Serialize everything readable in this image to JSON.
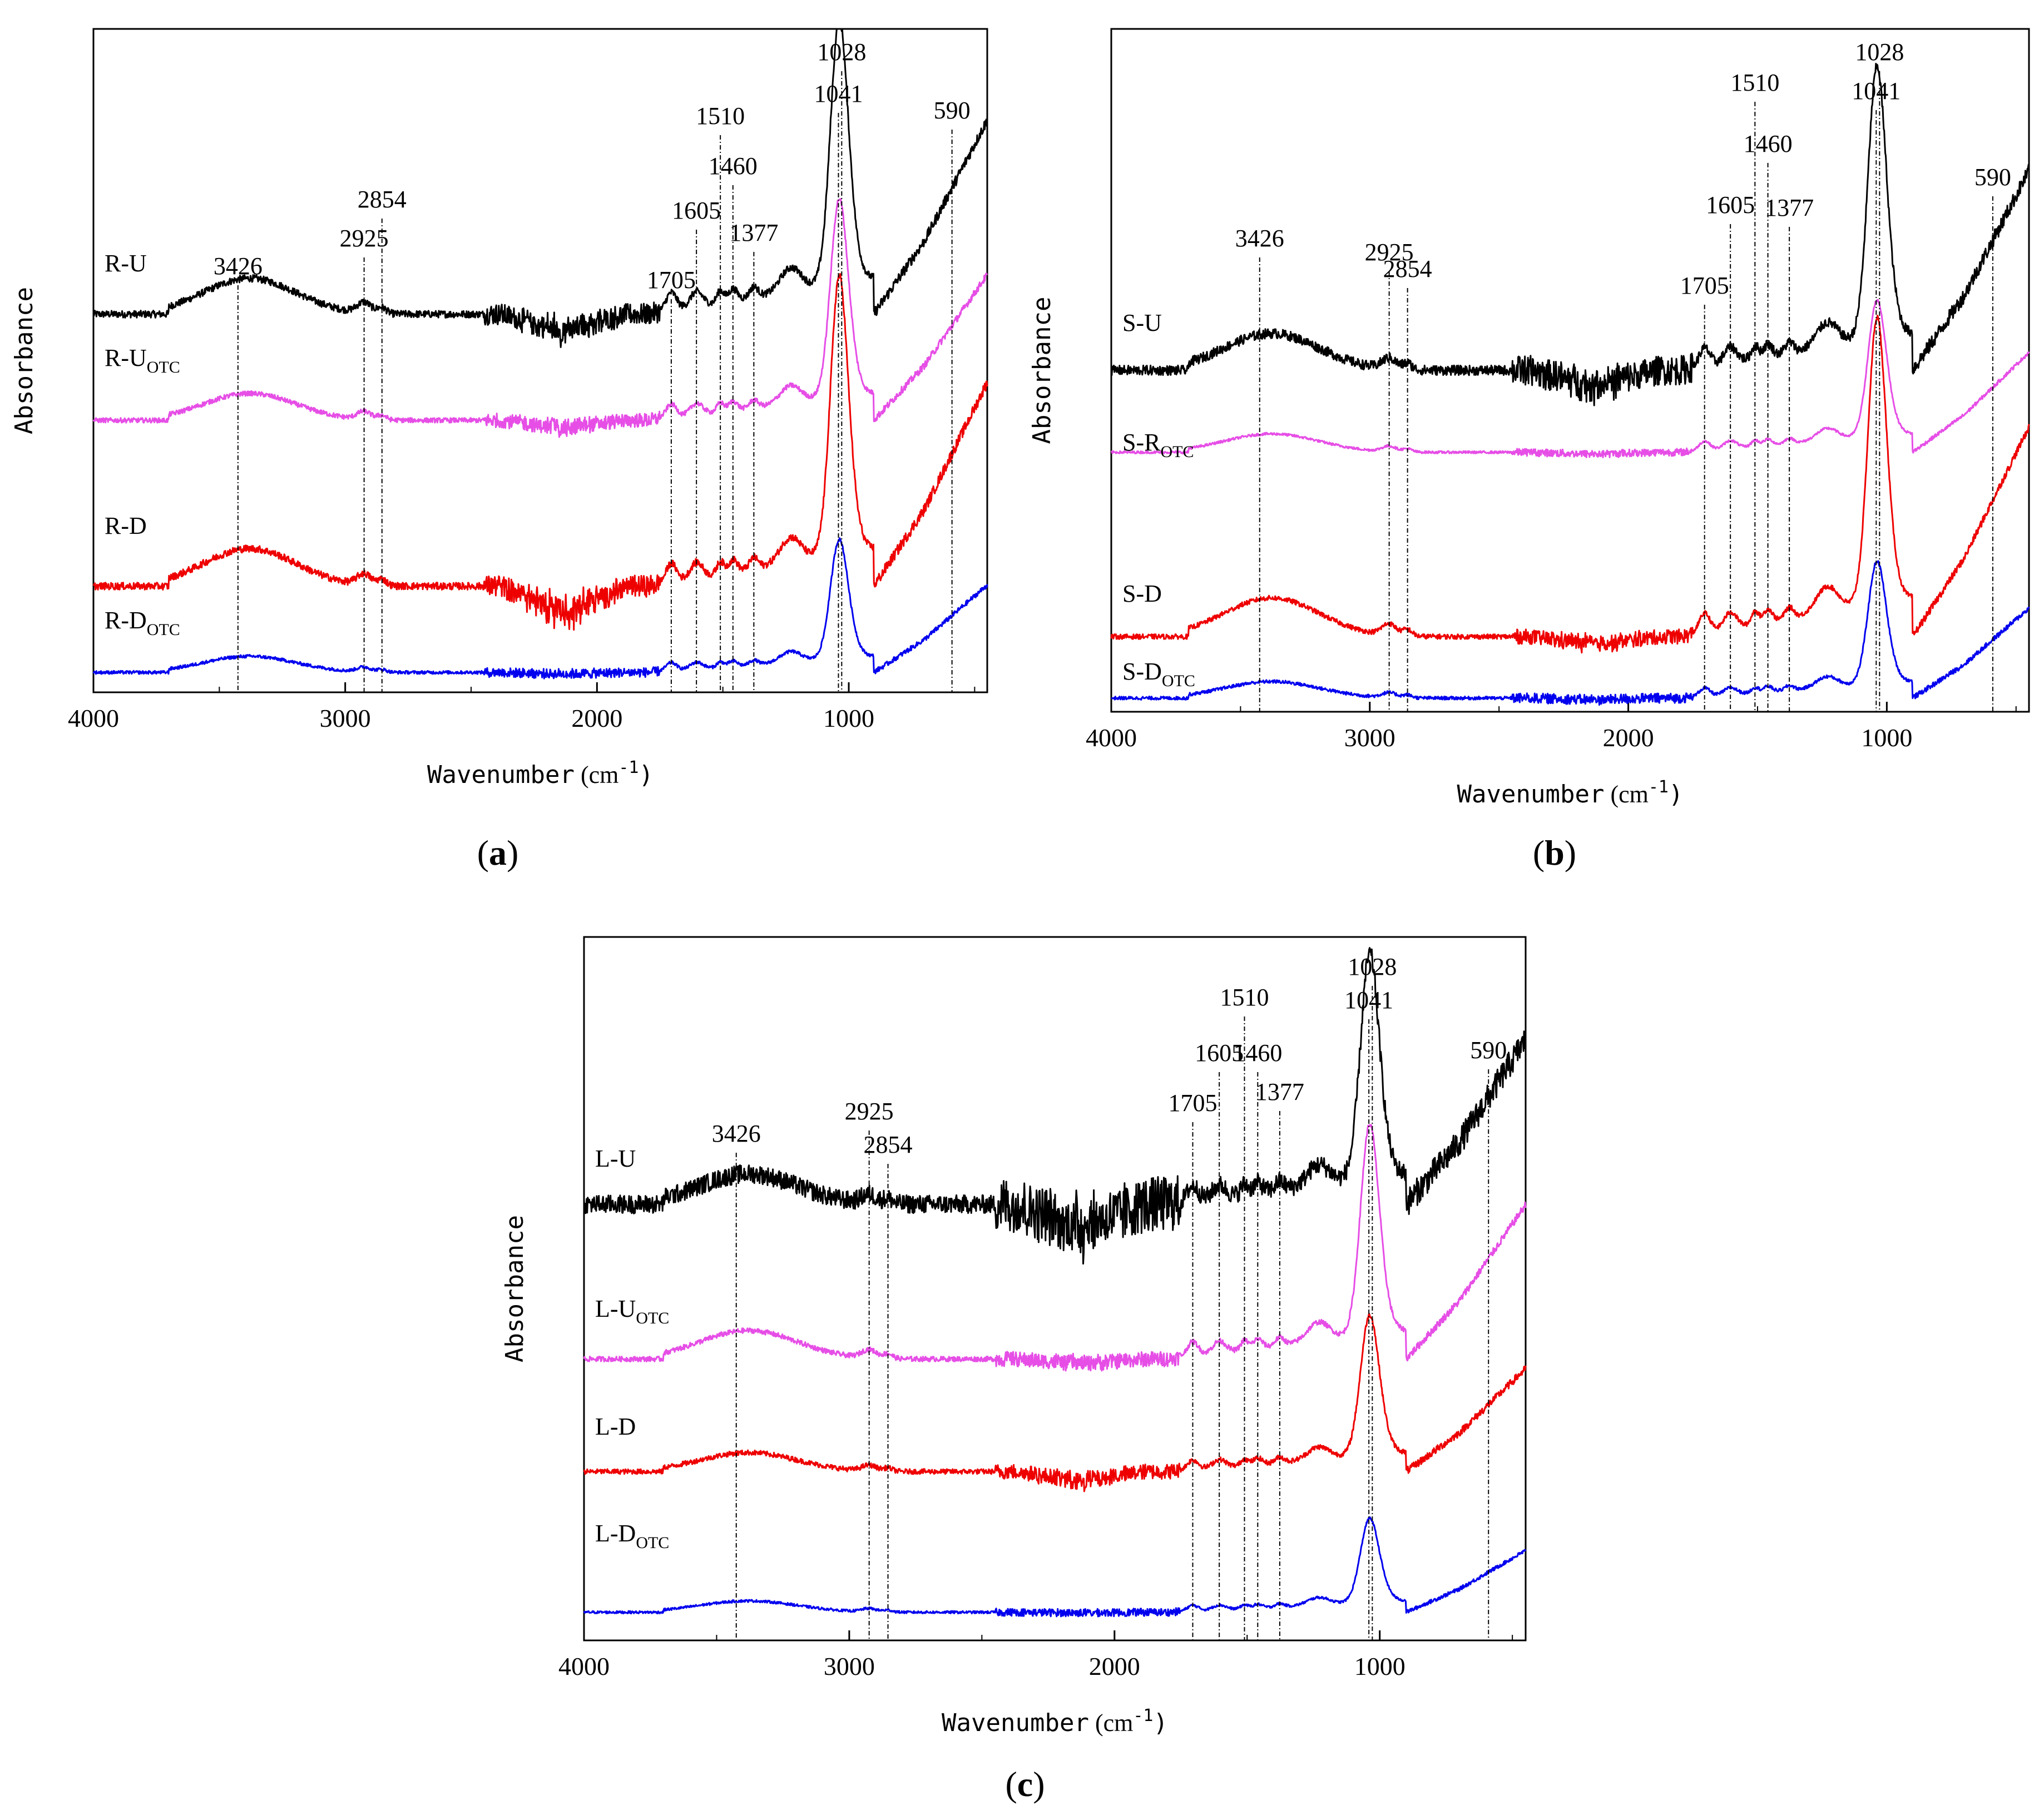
{
  "chart_data": [
    {
      "type": "line",
      "caption": "a",
      "xlabel": "Wavenumber",
      "xunit_base": "cm",
      "xunit_sup": "-1",
      "ylabel": "Absorbance",
      "xlim": [
        4000,
        450
      ],
      "x_reversed": true,
      "xticks": [
        4000,
        3000,
        2000,
        1000
      ],
      "ylim": [
        0,
        100
      ],
      "peaks": [
        3426,
        2925,
        2854,
        1705,
        1605,
        1510,
        1460,
        1377,
        1041,
        1028,
        590
      ],
      "series": [
        {
          "label_main": "R-U",
          "label_sub": "",
          "color": "#000000",
          "baseline": 57,
          "scale": 1.0,
          "noise": 0.9,
          "dip": 1.0
        },
        {
          "label_main": "R-U",
          "label_sub": "OTC",
          "color": "#e64ee6",
          "baseline": 41,
          "scale": 0.75,
          "noise": 0.6,
          "dip": 0.6
        },
        {
          "label_main": "R-D",
          "label_sub": "",
          "color": "#ee0000",
          "baseline": 16,
          "scale": 1.05,
          "noise": 0.9,
          "dip": 1.4
        },
        {
          "label_main": "R-D",
          "label_sub": "OTC",
          "color": "#0000ee",
          "baseline": 3,
          "scale": 0.45,
          "noise": 0.4,
          "dip": 0.2
        }
      ]
    },
    {
      "type": "line",
      "caption": "b",
      "xlabel": "Wavenumber",
      "xunit_base": "cm",
      "xunit_sup": "-1",
      "ylabel": "Absorbance",
      "xlim": [
        4000,
        450
      ],
      "x_reversed": true,
      "xticks": [
        4000,
        3000,
        2000,
        1000
      ],
      "ylim": [
        0,
        100
      ],
      "peaks": [
        3426,
        2925,
        2854,
        1705,
        1605,
        1510,
        1460,
        1377,
        1041,
        1028,
        590
      ],
      "series": [
        {
          "label_main": "S-U",
          "label_sub": "",
          "color": "#000000",
          "baseline": 50,
          "scale": 1.0,
          "noise": 1.2,
          "dip": 0.8
        },
        {
          "label_main": "S-R",
          "label_sub": "OTC",
          "color": "#e64ee6",
          "baseline": 38,
          "scale": 0.5,
          "noise": 0.3,
          "dip": 0.2
        },
        {
          "label_main": "S-D",
          "label_sub": "",
          "color": "#ee0000",
          "baseline": 11,
          "scale": 1.05,
          "noise": 0.6,
          "dip": 0.4
        },
        {
          "label_main": "S-D",
          "label_sub": "OTC",
          "color": "#0000ee",
          "baseline": 2,
          "scale": 0.45,
          "noise": 0.4,
          "dip": 0.2
        }
      ]
    },
    {
      "type": "line",
      "caption": "c",
      "xlabel": "Wavenumber",
      "xunit_base": "cm",
      "xunit_sup": "-1",
      "ylabel": "Absorbance",
      "xlim": [
        4000,
        450
      ],
      "x_reversed": true,
      "xticks": [
        4000,
        3000,
        2000,
        1000
      ],
      "ylim": [
        0,
        100
      ],
      "peaks": [
        3426,
        2925,
        2854,
        1705,
        1605,
        1510,
        1460,
        1377,
        1041,
        1028,
        590
      ],
      "series": [
        {
          "label_main": "L-U",
          "label_sub": "",
          "color": "#000000",
          "baseline": 62,
          "scale": 0.8,
          "noise": 2.2,
          "dip": 1.6
        },
        {
          "label_main": "L-U",
          "label_sub": "OTC",
          "color": "#e64ee6",
          "baseline": 40,
          "scale": 0.75,
          "noise": 0.6,
          "dip": 0.3
        },
        {
          "label_main": "L-D",
          "label_sub": "",
          "color": "#ee0000",
          "baseline": 24,
          "scale": 0.5,
          "noise": 0.6,
          "dip": 1.0
        },
        {
          "label_main": "L-D",
          "label_sub": "OTC",
          "color": "#0000ee",
          "baseline": 4,
          "scale": 0.3,
          "noise": 0.3,
          "dip": 0.1
        }
      ]
    }
  ]
}
